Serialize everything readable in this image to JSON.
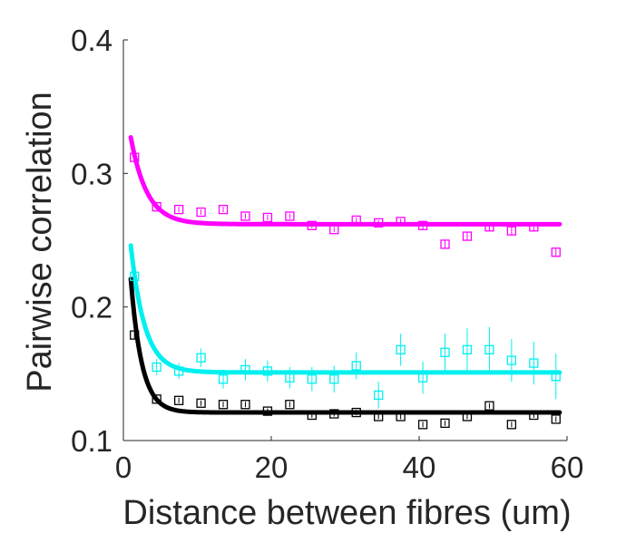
{
  "chart_data": {
    "type": "scatter",
    "title": "",
    "xlabel": "Distance between fibres (um)",
    "ylabel": "Pairwise correlation",
    "xlim": [
      0,
      60
    ],
    "ylim": [
      0.1,
      0.4
    ],
    "xticks": [
      0,
      20,
      40,
      60
    ],
    "yticks": [
      0.1,
      0.2,
      0.3,
      0.4
    ],
    "xtick_labels": [
      "0",
      "20",
      "40",
      "60"
    ],
    "ytick_labels": [
      "0.1",
      "0.2",
      "0.3",
      "0.4"
    ],
    "grid": false,
    "legend": "none",
    "series": [
      {
        "color": "#ff00ff",
        "marker": "square",
        "x": [
          1.5,
          4.5,
          7.5,
          10.5,
          13.5,
          16.5,
          19.5,
          22.5,
          25.5,
          28.5,
          31.5,
          34.5,
          37.5,
          40.5,
          43.5,
          46.5,
          49.5,
          52.5,
          55.5,
          58.5
        ],
        "y": [
          0.312,
          0.275,
          0.273,
          0.271,
          0.273,
          0.268,
          0.267,
          0.268,
          0.261,
          0.258,
          0.265,
          0.263,
          0.264,
          0.261,
          0.247,
          0.253,
          0.26,
          0.257,
          0.26,
          0.241
        ],
        "err": [
          0.004,
          0.002,
          0.002,
          0.002,
          0.002,
          0.002,
          0.002,
          0.002,
          0.002,
          0.002,
          0.002,
          0.002,
          0.002,
          0.003,
          0.003,
          0.003,
          0.003,
          0.003,
          0.003,
          0.003
        ],
        "fit": {
          "a": 0.262,
          "b": 0.065,
          "tau": 2.2
        }
      },
      {
        "color": "#00f0f0",
        "marker": "square",
        "x": [
          1.5,
          4.5,
          7.5,
          10.5,
          13.5,
          16.5,
          19.5,
          22.5,
          25.5,
          28.5,
          31.5,
          34.5,
          37.5,
          40.5,
          43.5,
          46.5,
          49.5,
          52.5,
          55.5,
          58.5
        ],
        "y": [
          0.223,
          0.155,
          0.152,
          0.162,
          0.146,
          0.153,
          0.152,
          0.147,
          0.146,
          0.146,
          0.156,
          0.134,
          0.168,
          0.147,
          0.166,
          0.168,
          0.168,
          0.16,
          0.158,
          0.148
        ],
        "err": [
          0.01,
          0.006,
          0.006,
          0.007,
          0.007,
          0.008,
          0.008,
          0.008,
          0.009,
          0.01,
          0.01,
          0.01,
          0.012,
          0.012,
          0.014,
          0.016,
          0.017,
          0.016,
          0.016,
          0.017
        ],
        "fit": {
          "a": 0.151,
          "b": 0.095,
          "tau": 1.9
        }
      },
      {
        "color": "#000000",
        "marker": "square",
        "x": [
          1.5,
          4.5,
          7.5,
          10.5,
          13.5,
          16.5,
          19.5,
          22.5,
          25.5,
          28.5,
          31.5,
          34.5,
          37.5,
          40.5,
          43.5,
          46.5,
          49.5,
          52.5,
          55.5,
          58.5
        ],
        "y": [
          0.179,
          0.131,
          0.13,
          0.128,
          0.127,
          0.127,
          0.122,
          0.127,
          0.119,
          0.12,
          0.121,
          0.118,
          0.118,
          0.112,
          0.113,
          0.118,
          0.126,
          0.112,
          0.119,
          0.116
        ],
        "err": [
          0.003,
          0.002,
          0.002,
          0.002,
          0.002,
          0.002,
          0.002,
          0.002,
          0.002,
          0.002,
          0.002,
          0.002,
          0.002,
          0.002,
          0.002,
          0.002,
          0.002,
          0.002,
          0.002,
          0.002
        ],
        "fit": {
          "a": 0.121,
          "b": 0.1,
          "tau": 1.5
        }
      }
    ]
  }
}
